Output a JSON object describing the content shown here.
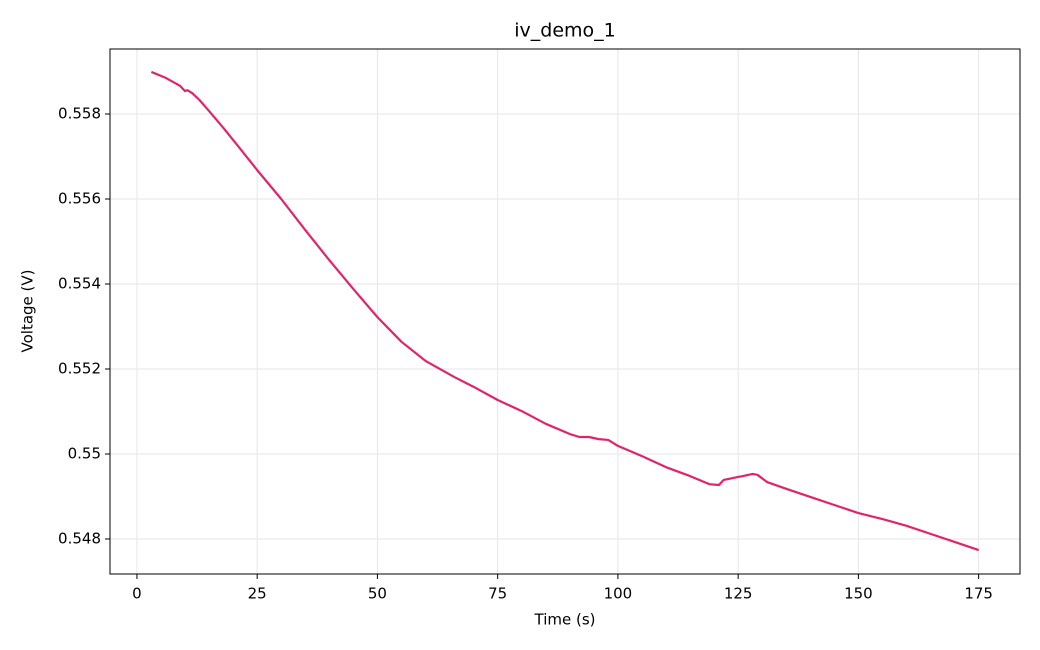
{
  "chart_data": {
    "type": "line",
    "title": "iv_demo_1",
    "x_label": "Time (s)",
    "y_label": "Voltage (V)",
    "x": [
      3,
      6,
      9,
      10,
      10.5,
      11.5,
      13,
      15,
      18,
      21,
      25,
      30,
      35,
      40,
      45,
      50,
      55,
      60,
      66,
      70,
      75,
      80,
      85,
      90,
      92,
      94,
      96,
      98,
      100,
      105,
      110,
      115,
      119,
      121,
      122,
      125,
      126,
      128,
      129,
      131,
      135,
      140,
      145,
      150,
      155,
      160,
      165,
      170,
      175
    ],
    "series": [
      {
        "name": "voltage",
        "color": "#e0246a",
        "values": [
          0.55899,
          0.55885,
          0.55866,
          0.55854,
          0.55856,
          0.55849,
          0.55833,
          0.55807,
          0.55767,
          0.55725,
          0.55668,
          0.556,
          0.55527,
          0.55456,
          0.55388,
          0.55322,
          0.55264,
          0.55219,
          0.55181,
          0.55158,
          0.55127,
          0.55101,
          0.55071,
          0.55047,
          0.5504,
          0.5504,
          0.55035,
          0.55033,
          0.55019,
          0.54995,
          0.54969,
          0.54948,
          0.54929,
          0.54927,
          0.54939,
          0.54946,
          0.54948,
          0.54953,
          0.54951,
          0.54934,
          0.54918,
          0.54899,
          0.5488,
          0.54861,
          0.54847,
          0.54831,
          0.54812,
          0.54793,
          0.54774
        ]
      }
    ],
    "xlim": [
      -5.6,
      183.6
    ],
    "ylim": [
      0.547176,
      0.55953
    ],
    "xticks": [
      0,
      25,
      50,
      75,
      100,
      125,
      150,
      175
    ],
    "yticks": [
      0.548,
      0.55,
      0.552,
      0.554,
      0.556,
      0.558
    ],
    "grid": true
  }
}
